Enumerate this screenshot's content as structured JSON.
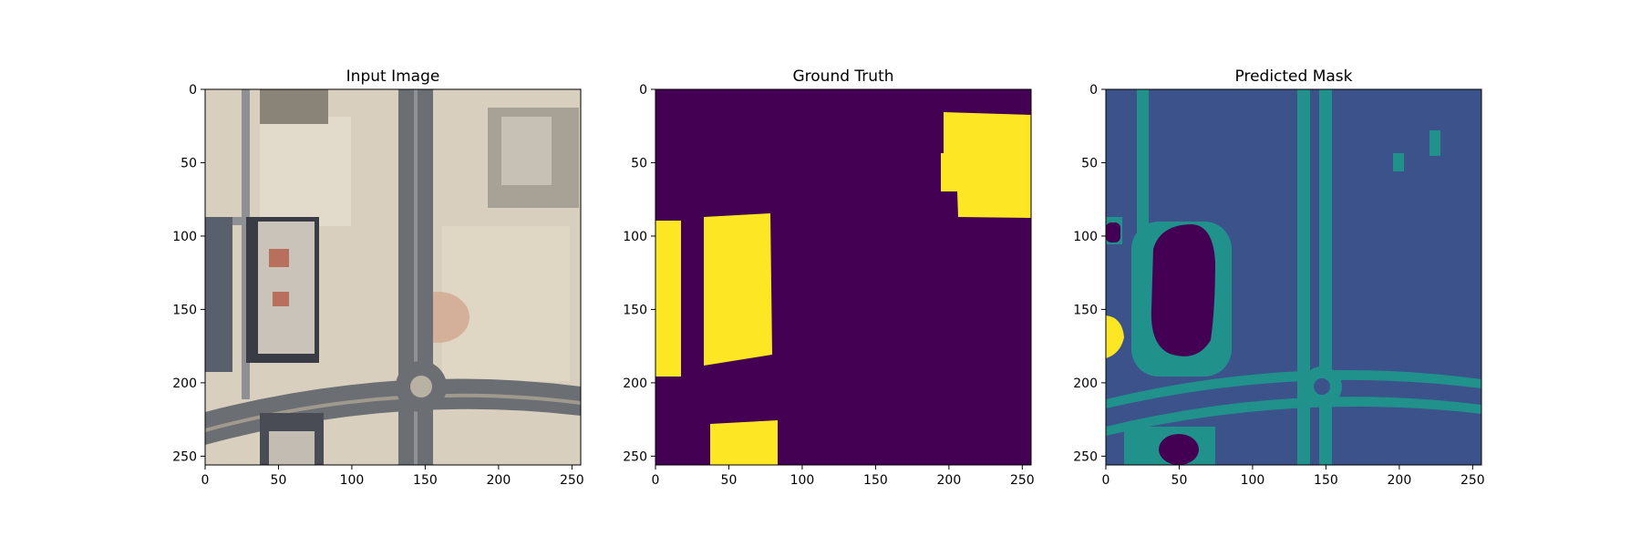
{
  "chart_data": [
    {
      "type": "image",
      "title": "Input Image",
      "xlim": [
        0,
        256
      ],
      "ylim": [
        256,
        0
      ],
      "xticks": [
        "0",
        "50",
        "100",
        "150",
        "200",
        "250"
      ],
      "yticks": [
        "0",
        "50",
        "100",
        "150",
        "200",
        "250"
      ],
      "colors": {
        "ground": "#d8cfbf",
        "ground_light": "#e2dbcc",
        "road": "#6b6e72",
        "road_light": "#8e9094",
        "building_roof": "#c9c3ba",
        "building_shadow": "#3a3c45",
        "building_accent": "#b8705c"
      }
    },
    {
      "type": "heatmap",
      "title": "Ground Truth",
      "xlim": [
        0,
        256
      ],
      "ylim": [
        256,
        0
      ],
      "xticks": [
        "0",
        "50",
        "100",
        "150",
        "200",
        "250"
      ],
      "yticks": [
        "0",
        "50",
        "100",
        "150",
        "200",
        "250"
      ],
      "colors": {
        "background": "#440154",
        "building": "#fde725"
      }
    },
    {
      "type": "heatmap",
      "title": "Predicted Mask",
      "xlim": [
        0,
        256
      ],
      "ylim": [
        256,
        0
      ],
      "xticks": [
        "0",
        "50",
        "100",
        "150",
        "200",
        "250"
      ],
      "yticks": [
        "0",
        "50",
        "100",
        "150",
        "200",
        "250"
      ],
      "colors": {
        "background": "#3b528b",
        "road": "#21918c",
        "building": "#440154",
        "other": "#fde725"
      }
    }
  ]
}
